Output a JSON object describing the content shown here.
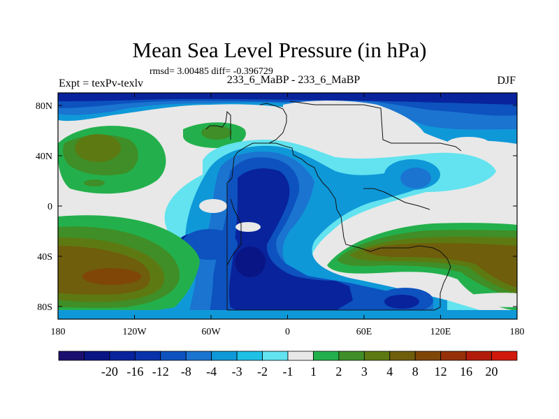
{
  "header": {
    "title": "Mean Sea Level Pressure (in hPa)",
    "stats": "rmsd= 3.00485 diff= -0.396729",
    "experiment": "Expt = texPv-texlv",
    "comparison": "233_6_MaBP - 233_6_MaBP",
    "season": "DJF"
  },
  "chart_data": {
    "type": "heatmap",
    "title": "Mean Sea Level Pressure (in hPa)",
    "subtitle": "233_6_MaBP - 233_6_MaBP",
    "x_ticks": [
      {
        "value": -180,
        "label": "180"
      },
      {
        "value": -120,
        "label": "120W"
      },
      {
        "value": -60,
        "label": "60W"
      },
      {
        "value": 0,
        "label": "0"
      },
      {
        "value": 60,
        "label": "60E"
      },
      {
        "value": 120,
        "label": "120E"
      },
      {
        "value": 180,
        "label": "180"
      }
    ],
    "y_ticks": [
      {
        "value": 80,
        "label": "80N"
      },
      {
        "value": 40,
        "label": "40N"
      },
      {
        "value": 0,
        "label": "0"
      },
      {
        "value": -40,
        "label": "40S"
      },
      {
        "value": -80,
        "label": "80S"
      }
    ],
    "xlim": [
      -180,
      180
    ],
    "ylim": [
      -90,
      90
    ],
    "colorbar": {
      "labels": [
        "-20",
        "-16",
        "-12",
        "-8",
        "-4",
        "-3",
        "-2",
        "-1",
        "1",
        "2",
        "3",
        "4",
        "8",
        "12",
        "16",
        "20"
      ],
      "colors": [
        "#1a0f6e",
        "#0a1585",
        "#08239b",
        "#0933aa",
        "#0d52bf",
        "#1a74d0",
        "#0f98d8",
        "#1fc0e6",
        "#62e3ef",
        "#e8e8e8",
        "#23b04c",
        "#3f8e27",
        "#5d7a12",
        "#6f5e0c",
        "#7f4608",
        "#963008",
        "#b21c0a",
        "#d11a0c"
      ]
    },
    "level_colors": {
      "lt_m8": "#0a1585",
      "m8_m4": "#08239b",
      "m4_m3": "#0d52bf",
      "m3_m2": "#1a74d0",
      "m2_m1": "#0f98d8",
      "m1_1": "#62e3ef",
      "neutral": "#e8e8e8",
      "p1_p2": "#23b04c",
      "p2_p3": "#3f8e27",
      "p3_p4": "#5d7a12",
      "p4_p8": "#6f5e0c",
      "p8_p12": "#7f4608",
      "p12_p16": "#963008",
      "p16_p20": "#b21c0a"
    }
  }
}
